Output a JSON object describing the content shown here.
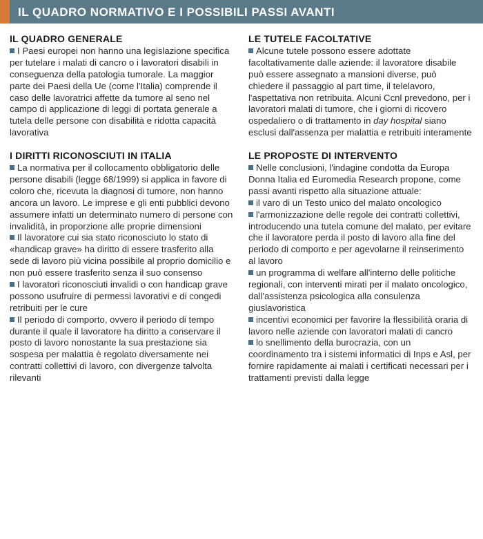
{
  "header": {
    "title": "IL QUADRO NORMATIVO E I POSSIBILI PASSI AVANTI",
    "accent_color": "#d67a3a",
    "bar_color": "#5a7a8a"
  },
  "left": {
    "s1": {
      "title": "IL QUADRO GENERALE",
      "p1": "I Paesi europei non hanno una legislazione specifica per tutelare i malati di cancro o i lavoratori disabili in conseguenza della patologia tumorale. La maggior parte dei Paesi della Ue (come l'Italia) comprende il caso delle lavoratrici affette da tumore al seno nel campo di applicazione di leggi di portata generale a tutela delle persone con disabilità e ridotta capacità lavorativa"
    },
    "s2": {
      "title": "I DIRITTI RICONOSCIUTI IN ITALIA",
      "p1": "La normativa per il collocamento obbligatorio delle persone disabili (legge 68/1999) si applica in favore di coloro che, ricevuta la diagnosi di tumore, non hanno ancora un lavoro. Le imprese e gli enti pubblici devono assumere infatti un determinato numero di persone con invalidità, in proporzione alle proprie dimensioni",
      "p2": "Il lavoratore cui sia stato riconosciuto lo stato di «handicap grave» ha diritto di essere trasferito alla sede di lavoro più vicina possibile al proprio domicilio e non può essere trasferito senza il suo consenso",
      "p3": "I lavoratori riconosciuti invalidi o con handicap grave possono usufruire di permessi lavorativi e di congedi retribuiti per le cure",
      "p4": "Il periodo di comporto, ovvero il periodo di tempo durante il quale il lavoratore ha diritto a conservare il posto di lavoro nonostante la sua prestazione sia sospesa per malattia è regolato diversamente nei contratti collettivi di lavoro, con divergenze talvolta rilevanti"
    }
  },
  "right": {
    "s1": {
      "title": "LE TUTELE FACOLTATIVE",
      "p1a": "Alcune tutele possono essere adottate facoltativamente dalle aziende: il lavoratore disabile può essere assegnato a mansioni diverse, può chiedere il passaggio al part time, il telelavoro, l'aspettativa non retribuita. Alcuni Ccnl prevedono, per i lavoratori malati di tumore, che i giorni di ricovero ospedaliero o di trattamento in ",
      "p1_italic": "day hospital",
      "p1b": " siano esclusi dall'assenza per malattia e retribuiti interamente"
    },
    "s2": {
      "title": "LE PROPOSTE DI INTERVENTO",
      "p1": "Nelle conclusioni, l'indagine condotta da Europa Donna Italia ed Euromedia Research propone, come passi avanti rispetto alla situazione attuale:",
      "p2": "il varo di un Testo unico del malato oncologico",
      "p3": "l'armonizzazione delle regole dei contratti collettivi, introducendo una tutela comune del malato, per evitare che il lavoratore perda il posto di lavoro alla fine del periodo di comporto e per agevolarne il reinserimento al lavoro",
      "p4": "un programma di welfare all'interno delle politiche regionali, con interventi mirati per il malato oncologico, dall'assistenza psicologica alla consulenza giuslavoristica",
      "p5": "incentivi economici per favorire la flessibilità oraria di lavoro nelle aziende con lavoratori malati di cancro",
      "p6": "lo snellimento della burocrazia, con un coordinamento tra i sistemi informatici di Inps e Asl, per fornire rapidamente ai malati i certificati necessari per i trattamenti previsti dalla legge"
    }
  },
  "styling": {
    "bullet_color": "#4a7088",
    "body_font_size": 13.2,
    "title_font_size": 14,
    "header_font_size": 17,
    "line_height": 1.28,
    "text_color": "#2a2a2a"
  }
}
